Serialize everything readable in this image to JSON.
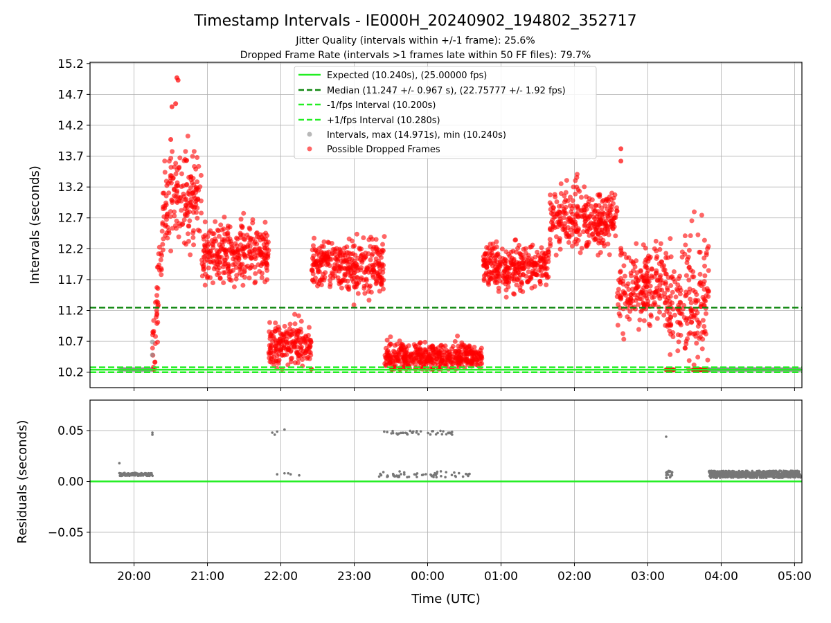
{
  "chart_data": [
    {
      "type": "scatter",
      "title": "Timestamp Intervals - IE000H_20240902_194802_352717",
      "subtitle_1": "Jitter Quality (intervals within +/-1 frame): 25.6%",
      "subtitle_2": "Dropped Frame Rate (intervals >1 frames late within 50 FF files): 79.7%",
      "ylabel": "Intervals (seconds)",
      "ylim": [
        9.95,
        15.22
      ],
      "yticks": [
        "10.2",
        "10.7",
        "11.2",
        "11.7",
        "12.2",
        "12.7",
        "13.2",
        "13.7",
        "14.2",
        "14.7",
        "15.2"
      ],
      "grid": true,
      "legend_position": "top-center",
      "reference_lines": [
        {
          "name": "Expected (10.240s), (25.00000 fps)",
          "value": 10.24,
          "color": "#22ee22",
          "style": "solid"
        },
        {
          "name": "Median (11.247 +/- 0.967 s), (22.75777 +/- 1.92 fps)",
          "value": 11.247,
          "color": "#118811",
          "style": "dashed"
        },
        {
          "name": "-1/fps Interval (10.200s)",
          "value": 10.2,
          "color": "#22ee22",
          "style": "dashed"
        },
        {
          "name": "+1/fps Interval (10.280s)",
          "value": 10.28,
          "color": "#22ee22",
          "style": "dashed"
        }
      ],
      "series": [
        {
          "name": "Intervals, max (14.971s), min (10.240s)",
          "color": "#888888",
          "note": "baseline points at ~10.24 s from ~19:48 to 20:15 and ~03:50 to 05:05"
        },
        {
          "name": "Possible Dropped Frames",
          "color": "#ff0000",
          "clusters": [
            {
              "start": "20:15",
              "end": "20:55",
              "center": 12.9,
              "spread": 0.8,
              "desc": "rise to peak near 20:35 (~14.97 s)"
            },
            {
              "start": "20:55",
              "end": "21:50",
              "center": 12.1,
              "spread": 0.45
            },
            {
              "start": "21:50",
              "end": "22:25",
              "center": 10.65,
              "spread": 0.3
            },
            {
              "start": "22:25",
              "end": "22:55",
              "center": 11.95,
              "spread": 0.35
            },
            {
              "start": "22:55",
              "end": "23:25",
              "center": 11.9,
              "spread": 0.4
            },
            {
              "start": "23:25",
              "end": "00:45",
              "center": 10.45,
              "spread": 0.2
            },
            {
              "start": "00:45",
              "end": "01:40",
              "center": 11.9,
              "spread": 0.35
            },
            {
              "start": "01:40",
              "end": "02:35",
              "center": 12.7,
              "spread": 0.45
            },
            {
              "start": "02:35",
              "end": "03:15",
              "center": 11.6,
              "spread": 0.6
            },
            {
              "start": "03:15",
              "end": "03:50",
              "center": 11.3,
              "spread": 0.7
            }
          ]
        }
      ]
    },
    {
      "type": "scatter",
      "ylabel": "Residuals (seconds)",
      "xlabel": "Time (UTC)",
      "ylim": [
        -0.08,
        0.08
      ],
      "yticks": [
        "−0.05",
        "0.00",
        "0.05"
      ],
      "xticks": [
        "20:00",
        "21:00",
        "22:00",
        "23:00",
        "00:00",
        "01:00",
        "02:00",
        "03:00",
        "04:00",
        "05:00"
      ],
      "xlim": [
        "19:24",
        "05:06"
      ],
      "grid": true,
      "reference_lines": [
        {
          "value": 0.0,
          "color": "#22ee22",
          "style": "solid"
        }
      ],
      "series": [
        {
          "color": "#777777",
          "clusters": [
            {
              "start": "19:48",
              "end": "20:15",
              "value": 0.007,
              "desc": "dense band, one point 0.018 at 19:48, two at ~0.047 near 20:15"
            },
            {
              "start": "21:50",
              "end": "22:05",
              "value": 0.048,
              "desc": "few points near 0.048"
            },
            {
              "start": "22:00",
              "end": "22:15",
              "value": 0.007,
              "desc": "few points near 0.007"
            },
            {
              "start": "23:20",
              "end": "00:20",
              "value": 0.048,
              "desc": "sparse points near 0.048"
            },
            {
              "start": "23:20",
              "end": "00:35",
              "value": 0.007,
              "desc": "sparse points near 0.007"
            },
            {
              "start": "03:15",
              "end": "03:20",
              "value": 0.007,
              "desc": "small cluster, one at 0.044"
            },
            {
              "start": "03:50",
              "end": "05:05",
              "value": 0.007,
              "desc": "dense band"
            }
          ]
        }
      ]
    }
  ]
}
